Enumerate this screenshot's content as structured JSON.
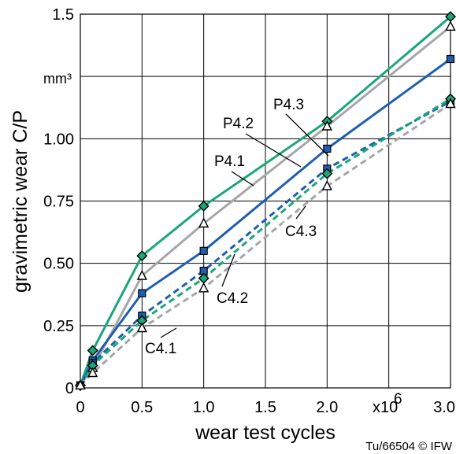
{
  "chart_data": {
    "type": "line",
    "xlabel": "wear test cycles",
    "ylabel": "gravimetric wear C/P",
    "y_unit": "mm³",
    "x_multiplier": "x10",
    "x_multiplier_exp": "6",
    "xlim": [
      0,
      3.0
    ],
    "ylim": [
      0,
      1.5
    ],
    "x_ticks": [
      0,
      0.5,
      1.0,
      1.5,
      2.0,
      2.5,
      3.0
    ],
    "x_tick_labels": [
      "0",
      "0.5",
      "1.0",
      "1.5",
      "2.0",
      "",
      "3.0"
    ],
    "y_ticks": [
      0,
      0.25,
      0.5,
      0.75,
      1.0,
      1.25,
      1.5
    ],
    "y_tick_labels": [
      "0",
      "0.25",
      "0.50",
      "0.75",
      "1.00",
      "",
      "1.5"
    ],
    "grid": true,
    "credit": "Tu/66504 © IFW",
    "series": [
      {
        "name": "P4.1",
        "color": "#1aa77a",
        "dash": "solid",
        "marker": "diamond",
        "x": [
          0,
          0.1,
          0.5,
          1.0,
          2.0,
          3.0
        ],
        "y": [
          0.01,
          0.15,
          0.53,
          0.73,
          1.07,
          1.49
        ]
      },
      {
        "name": "P4.2",
        "color": "#a6a6a6",
        "dash": "solid",
        "marker": "triangle",
        "x": [
          0,
          0.1,
          0.5,
          1.0,
          2.0,
          3.0
        ],
        "y": [
          0.01,
          0.08,
          0.45,
          0.66,
          1.05,
          1.45
        ]
      },
      {
        "name": "P4.3",
        "color": "#1f5fb0",
        "dash": "solid",
        "marker": "square",
        "x": [
          0,
          0.1,
          0.5,
          1.0,
          2.0,
          3.0
        ],
        "y": [
          0.01,
          0.11,
          0.38,
          0.55,
          0.96,
          1.32
        ]
      },
      {
        "name": "C4.1",
        "color": "#1f5fb0",
        "dash": "dashed",
        "marker": "square",
        "x": [
          0,
          0.1,
          0.5,
          1.0,
          2.0,
          3.0
        ],
        "y": [
          0.01,
          0.1,
          0.29,
          0.47,
          0.88,
          1.15
        ]
      },
      {
        "name": "C4.2",
        "color": "#1aa77a",
        "dash": "dashed",
        "marker": "diamond",
        "x": [
          0,
          0.1,
          0.5,
          1.0,
          2.0,
          3.0
        ],
        "y": [
          0.01,
          0.09,
          0.27,
          0.44,
          0.86,
          1.16
        ]
      },
      {
        "name": "C4.3",
        "color": "#a6a6a6",
        "dash": "dashed",
        "marker": "triangle",
        "x": [
          0,
          0.1,
          0.5,
          1.0,
          2.0,
          3.0
        ],
        "y": [
          0.01,
          0.06,
          0.24,
          0.4,
          0.81,
          1.14
        ]
      }
    ]
  }
}
